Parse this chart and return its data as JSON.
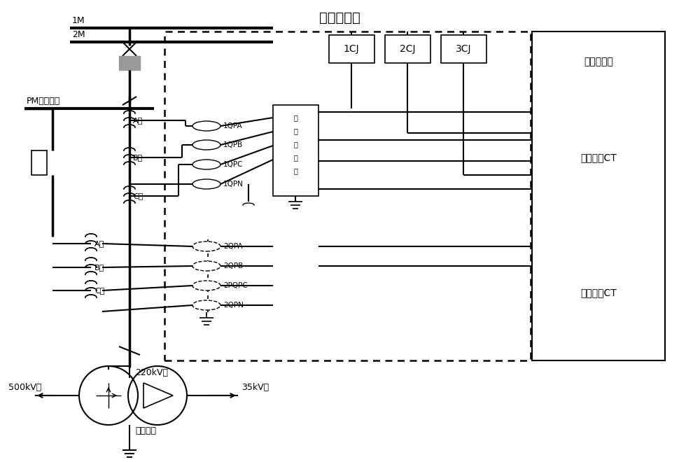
{
  "bg_color": "#ffffff",
  "title": "主变保护屏",
  "bus1_label": "1M",
  "bus2_label": "2M",
  "pm_label": "PM（旁母）",
  "label_A_top": "A相",
  "label_B_top": "B相",
  "label_C_top": "C相",
  "label_A_bot": "A相",
  "label_B_bot": "B相",
  "label_C_bot": "C相",
  "label_1QPA": "1QPA",
  "label_1QPB": "1QPB",
  "label_1QPC": "1QPC",
  "label_1QPN": "1QPN",
  "label_2QPA": "2QPA",
  "label_2QPB": "2QPB",
  "label_2PQPC": "2PQPC",
  "label_2QPN": "2QPN",
  "label_220kV": "220kV侧",
  "label_500kV": "500kV侧",
  "label_35kV": "35kV侧",
  "label_gonggong": "公共绕组",
  "label_1CJ": "1CJ",
  "label_2CJ": "2CJ",
  "label_3CJ": "3CJ",
  "label_diff_relay": "差动继电器",
  "label_main_ct": "主变开关CT",
  "label_bypass_ct": "旁路开关CT",
  "label_weibuzhuanjieqi": "微步调节器"
}
